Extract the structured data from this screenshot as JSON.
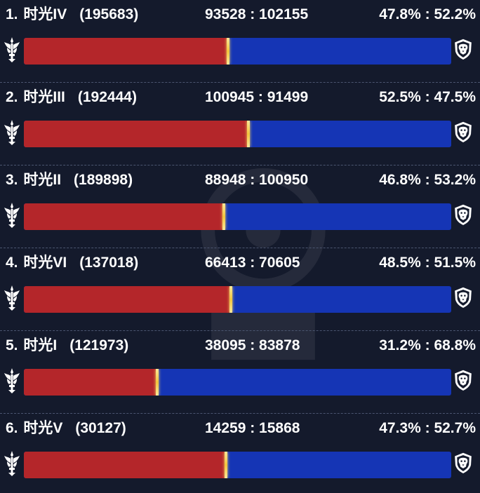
{
  "icons": {
    "left": "horde-crest-icon",
    "right": "alliance-lion-icon"
  },
  "colors": {
    "horde": "#b4262a",
    "alliance": "#1535b5",
    "marker": "#f2c43e",
    "background": "#141a2c"
  },
  "rows": [
    {
      "rank": "1.",
      "name": "时光IV",
      "population": "(195683)",
      "counts": "93528 : 102155",
      "percent": "47.8% : 52.2%",
      "horde_share": 0.478
    },
    {
      "rank": "2.",
      "name": "时光III",
      "population": "(192444)",
      "counts": "100945 : 91499",
      "percent": "52.5% : 47.5%",
      "horde_share": 0.525
    },
    {
      "rank": "3.",
      "name": "时光II",
      "population": "(189898)",
      "counts": "88948 : 100950",
      "percent": "46.8% : 53.2%",
      "horde_share": 0.468
    },
    {
      "rank": "4.",
      "name": "时光VI",
      "population": "(137018)",
      "counts": "66413 : 70605",
      "percent": "48.5% : 51.5%",
      "horde_share": 0.485
    },
    {
      "rank": "5.",
      "name": "时光I",
      "population": "(121973)",
      "counts": "38095 : 83878",
      "percent": "31.2% : 68.8%",
      "horde_share": 0.312
    },
    {
      "rank": "6.",
      "name": "时光V",
      "population": "(30127)",
      "counts": "14259 : 15868",
      "percent": "47.3% : 52.7%",
      "horde_share": 0.473
    }
  ]
}
